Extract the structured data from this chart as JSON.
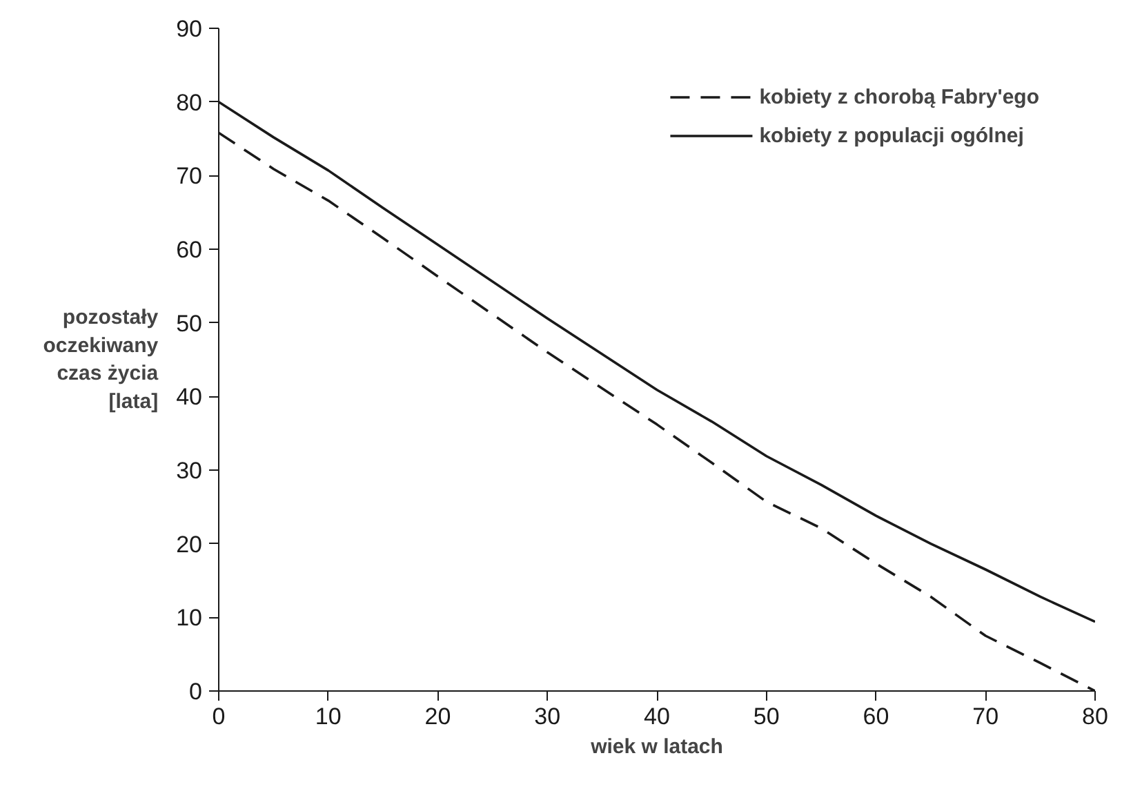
{
  "chart_data": {
    "type": "line",
    "xlabel": "wiek w latach",
    "ylabel": "pozostały\noczekiwany\nczas życia\n[lata]",
    "xlim": [
      0,
      80
    ],
    "ylim": [
      0,
      90
    ],
    "xticks": [
      0,
      10,
      20,
      30,
      40,
      50,
      60,
      70,
      80
    ],
    "yticks": [
      0,
      10,
      20,
      30,
      40,
      50,
      60,
      70,
      80,
      90
    ],
    "grid": false,
    "legend": "top right",
    "x": [
      0,
      5,
      10,
      15,
      20,
      30,
      40,
      45,
      50,
      55,
      60,
      65,
      70,
      75,
      80
    ],
    "series": [
      {
        "name": "kobiety z chorobą Fabry'ego",
        "color": "#1a1a1a",
        "line_style": "dashed",
        "values": [
          75.8,
          70.9,
          66.6,
          61.5,
          56.3,
          46.0,
          36.2,
          31.0,
          25.7,
          22.1,
          17.3,
          12.8,
          7.5,
          3.8,
          0
        ]
      },
      {
        "name": "kobiety z populacji ogólnej",
        "color": "#1a1a1a",
        "line_style": "solid",
        "values": [
          80,
          75.2,
          70.7,
          65.6,
          60.6,
          50.6,
          40.9,
          36.6,
          31.9,
          28.0,
          23.8,
          20.0,
          16.5,
          12.8,
          9.4
        ]
      }
    ]
  }
}
